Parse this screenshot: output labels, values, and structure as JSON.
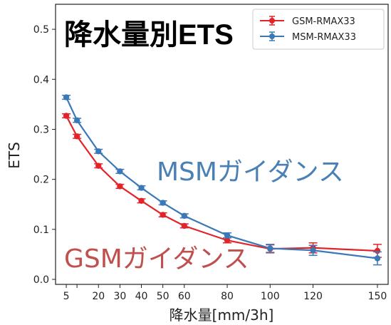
{
  "chart_data": {
    "type": "line",
    "title": "降水量別ETS",
    "xlabel": "降水量[mm/3h]",
    "ylabel": "ETS",
    "xlim": [
      0,
      155
    ],
    "ylim": [
      -0.01,
      0.55
    ],
    "xticks": [
      5,
      10,
      20,
      30,
      40,
      50,
      60,
      80,
      100,
      120,
      150
    ],
    "xtick_labels": [
      "5",
      "",
      "20",
      "30",
      "40",
      "50",
      "60",
      "80",
      "100",
      "120",
      "150"
    ],
    "yticks": [
      0.0,
      0.1,
      0.2,
      0.3,
      0.4,
      0.5
    ],
    "ytick_labels": [
      "0.0",
      "0.1",
      "0.2",
      "0.3",
      "0.4",
      "0.5"
    ],
    "grid": false,
    "legend_position": "top-right",
    "annotations": [
      {
        "text": "MSMガイダンス",
        "color": "#4a80b5"
      },
      {
        "text": "GSMガイダンス",
        "color": "#c0504d"
      }
    ],
    "series": [
      {
        "name": "GSM-RMAX33",
        "color": "#e2242a",
        "points": [
          {
            "x": 5,
            "y": 0.327,
            "err": 0.004
          },
          {
            "x": 10,
            "y": 0.286,
            "err": 0.004
          },
          {
            "x": 20,
            "y": 0.227,
            "err": 0.004
          },
          {
            "x": 30,
            "y": 0.186,
            "err": 0.004
          },
          {
            "x": 40,
            "y": 0.157,
            "err": 0.004
          },
          {
            "x": 50,
            "y": 0.129,
            "err": 0.004
          },
          {
            "x": 60,
            "y": 0.107,
            "err": 0.004
          },
          {
            "x": 80,
            "y": 0.078,
            "err": 0.005
          },
          {
            "x": 100,
            "y": 0.061,
            "err": 0.008
          },
          {
            "x": 120,
            "y": 0.063,
            "err": 0.01
          },
          {
            "x": 150,
            "y": 0.057,
            "err": 0.013
          }
        ]
      },
      {
        "name": "MSM-RMAX33",
        "color": "#3a78b7",
        "points": [
          {
            "x": 5,
            "y": 0.364,
            "err": 0.004
          },
          {
            "x": 10,
            "y": 0.318,
            "err": 0.004
          },
          {
            "x": 20,
            "y": 0.256,
            "err": 0.004
          },
          {
            "x": 30,
            "y": 0.216,
            "err": 0.004
          },
          {
            "x": 40,
            "y": 0.183,
            "err": 0.004
          },
          {
            "x": 50,
            "y": 0.153,
            "err": 0.004
          },
          {
            "x": 60,
            "y": 0.127,
            "err": 0.004
          },
          {
            "x": 80,
            "y": 0.088,
            "err": 0.005
          },
          {
            "x": 100,
            "y": 0.062,
            "err": 0.008
          },
          {
            "x": 120,
            "y": 0.058,
            "err": 0.01
          },
          {
            "x": 150,
            "y": 0.042,
            "err": 0.013
          }
        ]
      }
    ]
  }
}
